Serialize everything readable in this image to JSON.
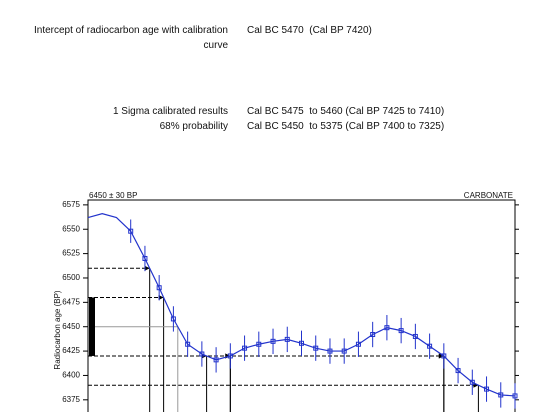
{
  "header": {
    "intercept_label": "Intercept of radiocarbon age with calibration curve",
    "intercept_value": "Cal BC 5470  (Cal BP 7420)",
    "sigma_label": "1 Sigma calibrated results",
    "probability_label": "68% probability",
    "sigma_results": [
      "Cal BC 5475  to 5460 (Cal BP 7425 to 7410)",
      "Cal BC 5450  to 5375 (Cal BP 7400 to 7325)"
    ]
  },
  "chart_data": {
    "type": "line",
    "title": "6450 ± 30 BP",
    "subtitle": "CARBONATE",
    "ylabel": "Radiocarbon age (BP)",
    "sample_age": 6450,
    "sample_error": 30,
    "color": "#2233cc",
    "categories": [
      null,
      null,
      null,
      null,
      null,
      null,
      null,
      null,
      null,
      null,
      null,
      null,
      null,
      null,
      null,
      null,
      null,
      null,
      null,
      null,
      null,
      null,
      null,
      null,
      null,
      null,
      null,
      null,
      null,
      null,
      null
    ],
    "series": [
      {
        "color": "#2233cc",
        "values": [
          6562,
          6566,
          6562,
          6548,
          6520,
          6490,
          6458,
          6432,
          6422,
          6416,
          6420,
          6428,
          6432,
          6435,
          6437,
          6433,
          6428,
          6425,
          6425,
          6432,
          6442,
          6449,
          6446,
          6440,
          6430,
          6420,
          6405,
          6393,
          6386,
          6380,
          6379
        ],
        "errors": [
          null,
          null,
          null,
          12,
          13,
          13,
          13,
          13,
          13,
          13,
          13,
          13,
          13,
          13,
          13,
          13,
          13,
          13,
          13,
          13,
          13,
          13,
          13,
          13,
          13,
          13,
          13,
          13,
          13,
          13,
          13
        ]
      }
    ],
    "ylim": [
      6362.5,
      6580
    ],
    "yticks": [
      6375,
      6400,
      6425,
      6450,
      6475,
      6500,
      6525,
      6550,
      6575
    ]
  }
}
